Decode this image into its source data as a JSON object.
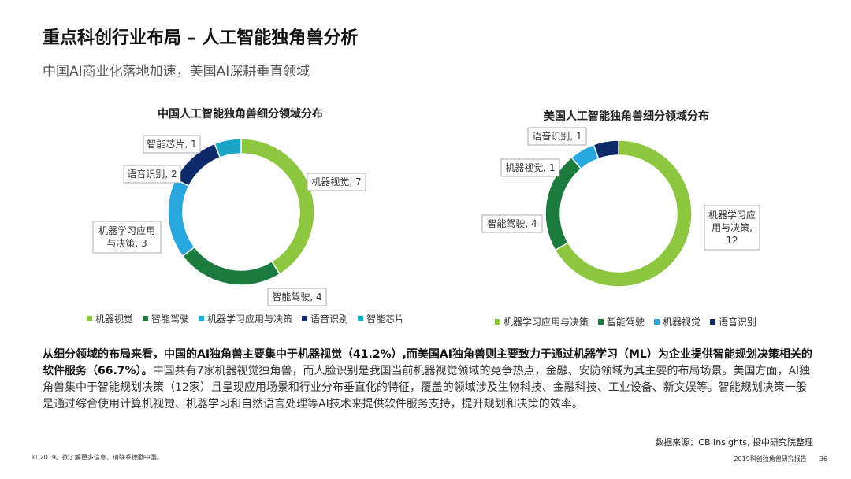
{
  "header": {
    "title": "重点科创行业布局 – 人工智能独角兽分析",
    "subtitle": "中国AI商业化落地加速，美国AI深耕垂直领域"
  },
  "colors": {
    "light_green": "#8dc63f",
    "dark_green": "#1b7a3e",
    "light_blue": "#29a8e0",
    "navy": "#0d2b6b",
    "teal": "#1ba5c4"
  },
  "chart_data": [
    {
      "type": "pie",
      "title": "中国人工智能独角兽细分领域分布",
      "categories": [
        "机器视觉",
        "智能驾驶",
        "机器学习应用与决策",
        "语音识别",
        "智能芯片"
      ],
      "values": [
        7,
        4,
        3,
        2,
        1
      ],
      "data_labels": [
        "机器视觉, 7",
        "智能驾驶, 4",
        "机器学习应用\n与决策, 3",
        "语音识别, 2",
        "智能芯片, 1"
      ],
      "colors": [
        "#8dc63f",
        "#1b7a3e",
        "#29a8e0",
        "#0d2b6b",
        "#1ba5c4"
      ],
      "legend": "bottom"
    },
    {
      "type": "pie",
      "title": "美国人工智能独角兽细分领域分布",
      "categories": [
        "机器学习应用与决策",
        "智能驾驶",
        "机器视觉",
        "语音识别"
      ],
      "values": [
        12,
        4,
        1,
        1
      ],
      "data_labels": [
        "机器学习应\n用与决策,\n12",
        "智能驾驶, 4",
        "机器视觉, 1",
        "语音识别, 1"
      ],
      "colors": [
        "#8dc63f",
        "#1b7a3e",
        "#29a8e0",
        "#0d2b6b"
      ],
      "legend": "bottom"
    }
  ],
  "body": {
    "bold_text": "从细分领域的布局来看，中国的AI独角兽主要集中于机器视觉（41.2%）,而美国AI独角兽则主要致力于通过机器学习（ML）为企业提供智能规划决策相关的软件服务（66.7%）。",
    "normal_text": "中国共有7家机器视觉独角兽，而人脸识别是我国当前机器视觉领域的竞争热点，金融、安防领域为其主要的布局场景。美国方面，AI独角兽集中于智能规划决策（12家）且呈现应用场景和行业分布垂直化的特征，覆盖的领域涉及生物科技、金融科技、工业设备、新文娱等。智能规划决策一般是通过综合使用计算机视觉、机器学习和自然语言处理等AI技术来提供软件服务支持，提升规划和决策的效率。"
  },
  "source": "数据来源：CB Insights, 投中研究院整理",
  "footer": {
    "left": "© 2019。欲了解更多信息，请联系德勤中国。",
    "report": "2019科创独角兽研究报告",
    "page": "36"
  }
}
